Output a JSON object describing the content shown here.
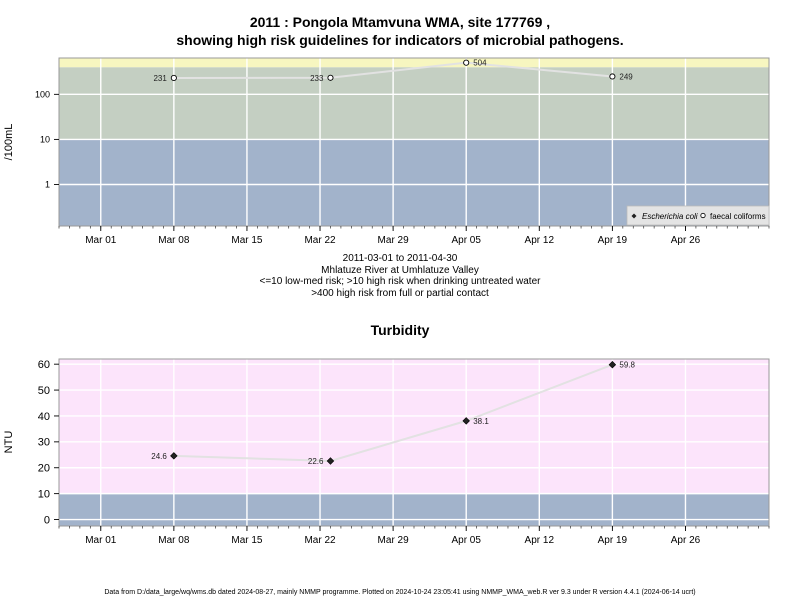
{
  "chart_data": [
    {
      "type": "line",
      "title_line1": "2011 : Pongola Mtamvuna WMA, site 177769 ,",
      "title_line2": "showing high risk guidelines for indicators of microbial pathogens.",
      "ylabel": "/100mL",
      "yscale": "log",
      "yticks": [
        1,
        10,
        100
      ],
      "ytick_labels": [
        "1",
        "10",
        "100"
      ],
      "x_range": [
        "2011-02-25",
        "2011-05-04"
      ],
      "xticks": [
        "2011-03-01",
        "2011-03-08",
        "2011-03-15",
        "2011-03-22",
        "2011-03-29",
        "2011-04-05",
        "2011-04-12",
        "2011-04-19",
        "2011-04-26"
      ],
      "xtick_labels": [
        "Mar 01",
        "Mar 08",
        "Mar 15",
        "Mar 22",
        "Mar 29",
        "Apr 05",
        "Apr 12",
        "Apr 19",
        "Apr 26"
      ],
      "bands": [
        {
          "from": 0.12,
          "to": 10,
          "color": "#a2b3cb"
        },
        {
          "from": 10,
          "to": 400,
          "color": "#c4cfc2"
        },
        {
          "from": 400,
          "to": 640,
          "color": "#f7f6c0"
        }
      ],
      "legend": {
        "position": "bottom-right",
        "items": [
          "Escherichia coli",
          "faecal coliforms"
        ]
      },
      "series": [
        {
          "name": "faecal coliforms",
          "marker": "open-circle",
          "x": [
            "2011-03-08",
            "2011-03-23",
            "2011-04-05",
            "2011-04-19"
          ],
          "values": [
            231,
            233,
            504,
            249
          ],
          "labels": [
            "231",
            "233",
            "504",
            "249"
          ],
          "label_side": [
            "left",
            "left",
            "right",
            "right"
          ]
        }
      ],
      "caption": [
        "2011-03-01 to 2011-04-30",
        "Mhlatuze River at Umhlatuze Valley",
        "<=10 low-med risk; >10 high risk when drinking untreated water",
        ">400 high risk from full or partial contact"
      ]
    },
    {
      "type": "line",
      "title": "Turbidity",
      "ylabel": "NTU",
      "ylim": [
        -2.5,
        62
      ],
      "yticks": [
        0,
        10,
        20,
        30,
        40,
        50,
        60
      ],
      "ytick_labels": [
        "0",
        "10",
        "20",
        "30",
        "40",
        "50",
        "60"
      ],
      "x_range": [
        "2011-02-25",
        "2011-05-04"
      ],
      "xticks": [
        "2011-03-01",
        "2011-03-08",
        "2011-03-15",
        "2011-03-22",
        "2011-03-29",
        "2011-04-05",
        "2011-04-12",
        "2011-04-19",
        "2011-04-26"
      ],
      "xtick_labels": [
        "Mar 01",
        "Mar 08",
        "Mar 15",
        "Mar 22",
        "Mar 29",
        "Apr 05",
        "Apr 12",
        "Apr 19",
        "Apr 26"
      ],
      "bands": [
        {
          "from": -2.5,
          "to": 10,
          "color": "#a2b3cb"
        },
        {
          "from": 10,
          "to": 62,
          "color": "#fce4fb"
        }
      ],
      "series": [
        {
          "marker": "filled-diamond",
          "x": [
            "2011-03-08",
            "2011-03-23",
            "2011-04-05",
            "2011-04-19"
          ],
          "values": [
            24.6,
            22.6,
            38.1,
            59.8
          ],
          "labels": [
            "24.6",
            "22.6",
            "38.1",
            "59.8"
          ],
          "label_side": [
            "left",
            "left",
            "right",
            "right"
          ]
        }
      ]
    }
  ],
  "footer": "Data from D:/data_large/wq/wms.db dated 2024-08-27, mainly NMMP programme. Plotted on 2024-10-24 23:05:41 using NMMP_WMA_web.R ver 9.3 under R version 4.4.1 (2024-06-14 ucrt)",
  "colors": {
    "grid": "#ffffff",
    "line": "#e2e2e2",
    "panel_border": "#999999"
  }
}
